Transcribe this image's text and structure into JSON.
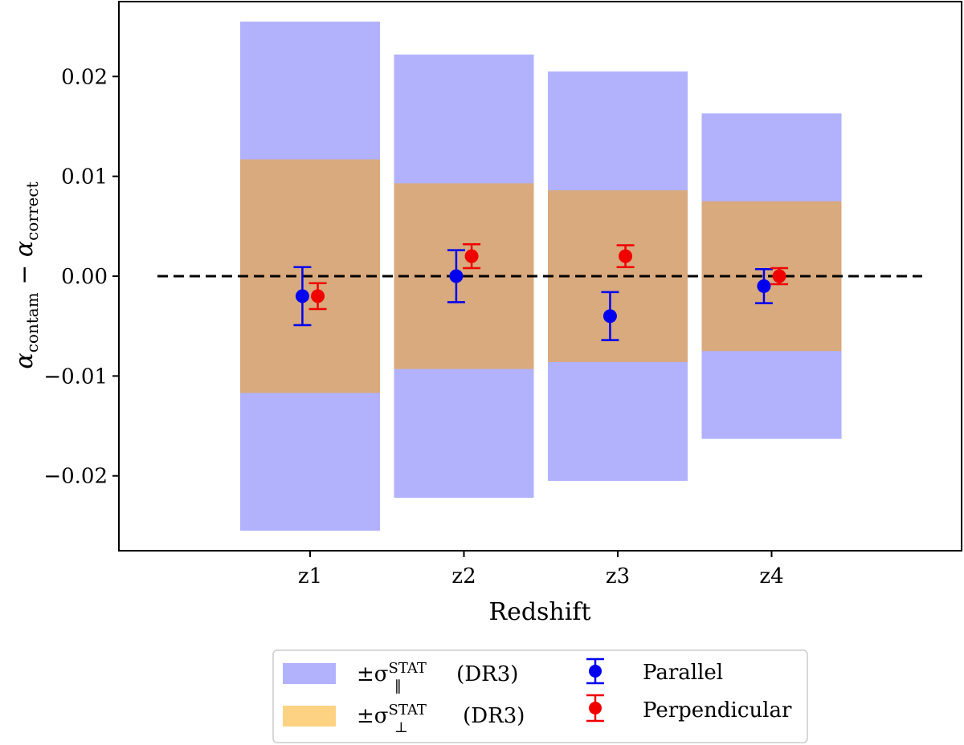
{
  "chart_data": {
    "type": "errorbar",
    "title": "",
    "xlabel": "Redshift",
    "ylabel_parts": {
      "main": "α",
      "sub1": "contam",
      "minus": " − ",
      "main2": "α",
      "sub2": "correct"
    },
    "categories": [
      "z1",
      "z2",
      "z3",
      "z4"
    ],
    "ylim": [
      -0.0275,
      0.0275
    ],
    "yticks": [
      {
        "value": -0.02,
        "label": "−0.02"
      },
      {
        "value": -0.01,
        "label": "−0.01"
      },
      {
        "value": 0.0,
        "label": "0.00"
      },
      {
        "value": 0.01,
        "label": "0.01"
      },
      {
        "value": 0.02,
        "label": "0.02"
      }
    ],
    "reference_line": {
      "y": 0.0,
      "style": "dashed",
      "color": "#000000"
    },
    "bands": [
      {
        "name": "sigma_parallel_stat",
        "half_widths": [
          0.0255,
          0.0222,
          0.0205,
          0.0163
        ],
        "color": "#b2b2fc"
      },
      {
        "name": "sigma_perp_stat",
        "half_widths": [
          0.0117,
          0.0093,
          0.0086,
          0.0075
        ],
        "color": "#d8aa7e"
      }
    ],
    "series": [
      {
        "name": "Parallel",
        "color": "#0000f0",
        "offset": -0.05,
        "values": [
          -0.002,
          0.0,
          -0.004,
          -0.001
        ],
        "errors": [
          0.0029,
          0.0026,
          0.0024,
          0.0017
        ]
      },
      {
        "name": "Perpendicular",
        "color": "#f00000",
        "offset": 0.05,
        "values": [
          -0.002,
          0.002,
          0.002,
          0.0
        ],
        "errors": [
          0.0013,
          0.0012,
          0.0011,
          0.0008
        ]
      }
    ],
    "legend": {
      "placement": "below",
      "entries": [
        {
          "kind": "band",
          "color": "#b2b2fc",
          "pm": "±σ",
          "sub": "‖",
          "sup": "STAT",
          "suffix": " (DR3)"
        },
        {
          "kind": "band",
          "color": "#fdd383",
          "pm": "±σ",
          "sub": "⊥",
          "sup": "STAT",
          "suffix": " (DR3)"
        },
        {
          "kind": "marker",
          "color": "#0000f0",
          "label": "Parallel"
        },
        {
          "kind": "marker",
          "color": "#f00000",
          "label": "Perpendicular"
        }
      ]
    }
  }
}
